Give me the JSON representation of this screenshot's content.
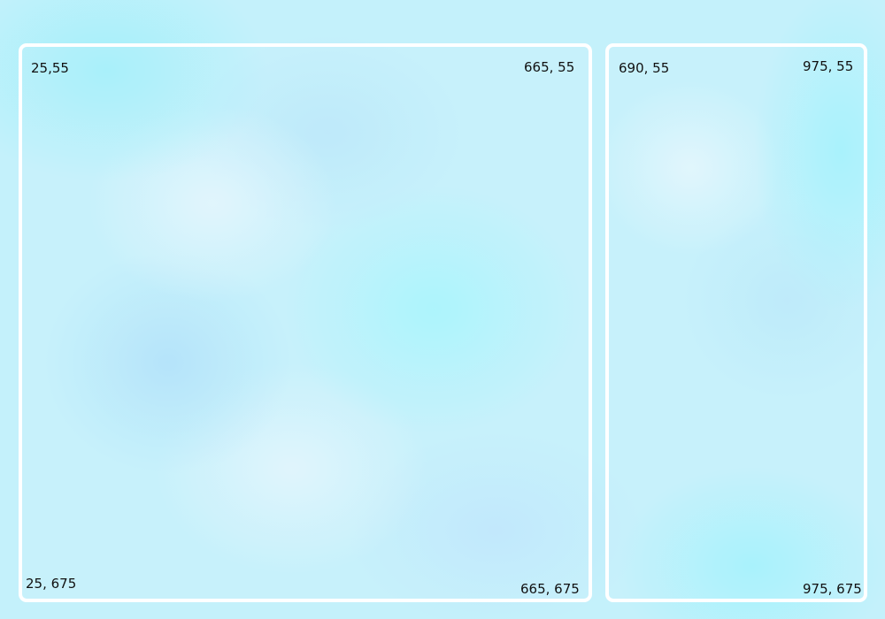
{
  "panels": {
    "left": {
      "top_left_label": "25,55",
      "top_right_label": "665, 55",
      "bottom_left_label": "25, 675",
      "bottom_right_label": "665, 675"
    },
    "right": {
      "top_left_label": "690, 55",
      "top_right_label": "975, 55",
      "bottom_right_label": "975, 675"
    }
  },
  "colors": {
    "background": "#c4f1fb",
    "panel_border": "#ffffff",
    "label_text": "#111111"
  }
}
